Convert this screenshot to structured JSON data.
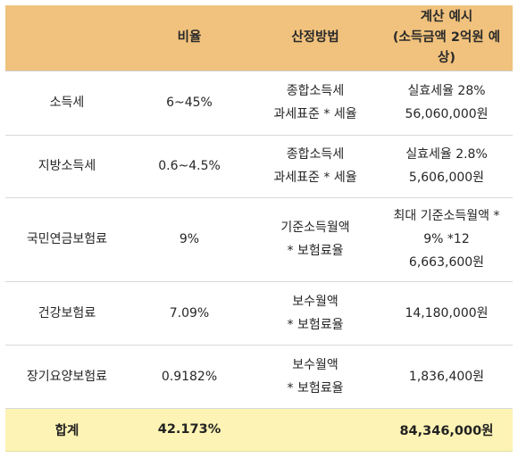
{
  "header": {
    "col1": "",
    "col2": "비율",
    "col3": "산정방법",
    "col4_line1": "계산 예시",
    "col4_line2": "(소득금액 2억원 예상)"
  },
  "rows": [
    {
      "name": "소득세",
      "rate": "6~45%",
      "method": [
        "종합소득세",
        "과세표준 * 세율"
      ],
      "example": [
        "실효세율 28%",
        "56,060,000원"
      ]
    },
    {
      "name": "지방소득세",
      "rate": "0.6~4.5%",
      "method": [
        "종합소득세",
        "과세표준 * 세율"
      ],
      "example": [
        "실효세율 2.8%",
        "5,606,000원"
      ]
    },
    {
      "name": "국민연금보험료",
      "rate": "9%",
      "method": [
        "기준소득월액",
        "* 보험료율"
      ],
      "example": [
        "최대 기준소득월액 *",
        "9% *12",
        "6,663,600원"
      ]
    },
    {
      "name": "건강보험료",
      "rate": "7.09%",
      "method": [
        "보수월액",
        "* 보험료율"
      ],
      "example": [
        "14,180,000원"
      ]
    },
    {
      "name": "장기요양보험료",
      "rate": "0.9182%",
      "method": [
        "보수월액",
        "* 보험료율"
      ],
      "example": [
        "1,836,400원"
      ]
    }
  ],
  "total": {
    "name": "합계",
    "rate": "42.173%",
    "method": "",
    "example": "84,346,000원"
  },
  "colors": {
    "header_bg": "#f1c27d",
    "total_bg": "#fdf3b4",
    "divider": "#d9d9d9"
  }
}
